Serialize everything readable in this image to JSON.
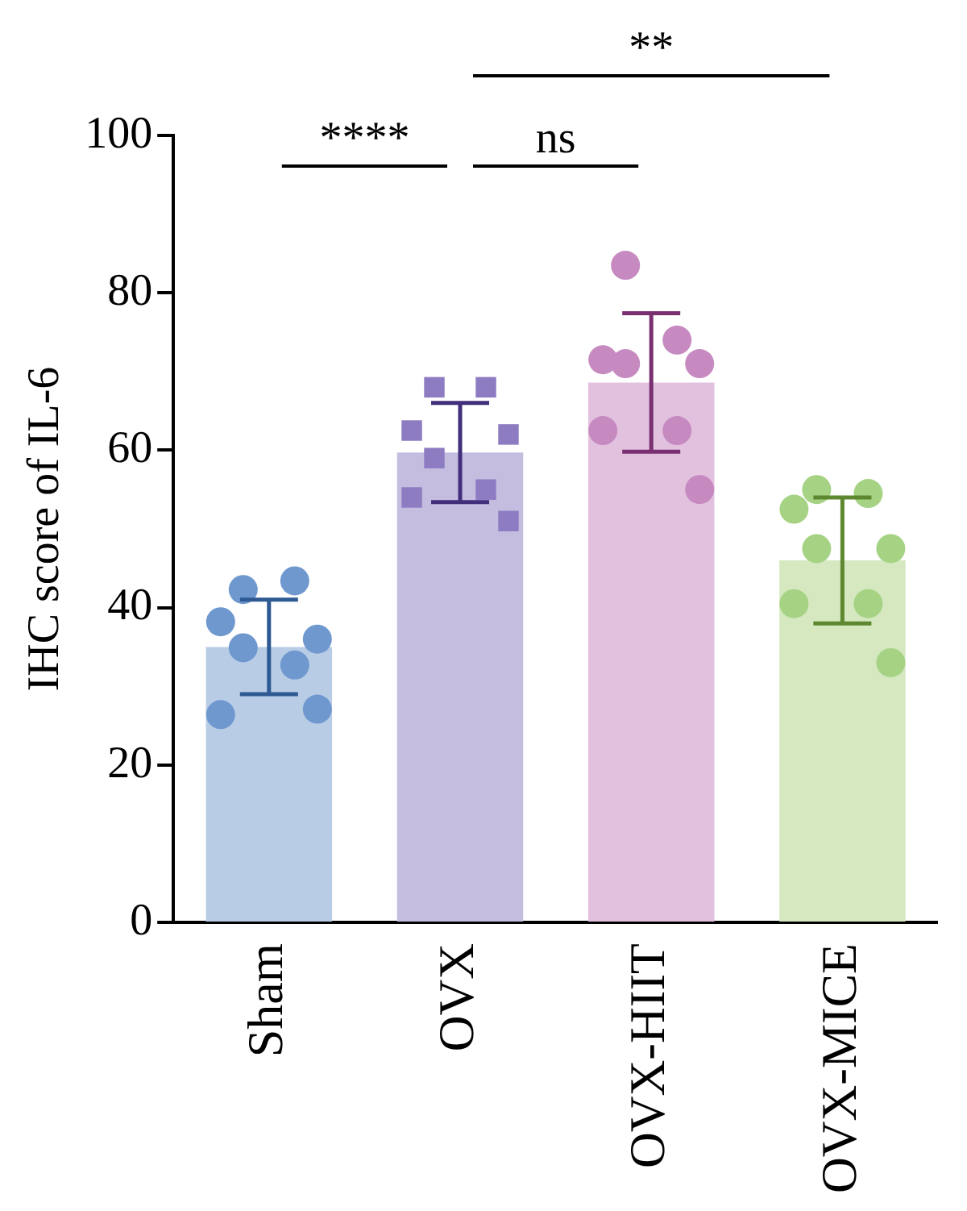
{
  "chart_data": {
    "type": "bar",
    "ylabel": "IHC score of IL-6",
    "categories": [
      "Sham",
      "OVX",
      "OVX-HIIT",
      "OVX-MICE"
    ],
    "ylim": [
      0,
      100
    ],
    "yticks": [
      0,
      20,
      40,
      60,
      80,
      100
    ],
    "grid": false,
    "legend": false,
    "annotations": [
      "****",
      "ns",
      "**"
    ],
    "series": [
      {
        "values": [
          35,
          59.7,
          68.6,
          46
        ],
        "errors": [
          6,
          6.3,
          8.8,
          8
        ],
        "colors": [
          "#b8cce6",
          "#c5bde0",
          "#e2c1de",
          "#d5e8c0"
        ]
      },
      {
        "type": "scatter",
        "marker": "circle",
        "color": "#6f98cf",
        "x": [
          "Sham",
          "Sham",
          "Sham",
          "Sham",
          "Sham",
          "Sham",
          "Sham",
          "Sham"
        ],
        "values": [
          42.3,
          43.4,
          38.2,
          36,
          34.9,
          32.7,
          26.4,
          27.1
        ]
      },
      {
        "type": "scatter",
        "marker": "square",
        "color": "#8e7cc3",
        "x": [
          "OVX",
          "OVX",
          "OVX",
          "OVX",
          "OVX",
          "OVX",
          "OVX",
          "OVX"
        ],
        "values": [
          68,
          68,
          62.5,
          62,
          59,
          55,
          54,
          51
        ]
      },
      {
        "type": "scatter",
        "marker": "circle",
        "color": "#c68ac1",
        "x": [
          "OVX-HIIT",
          "OVX-HIIT",
          "OVX-HIIT",
          "OVX-HIIT",
          "OVX-HIIT",
          "OVX-HIIT",
          "OVX-HIIT",
          "OVX-HIIT"
        ],
        "values": [
          83.5,
          74,
          71.5,
          71,
          71,
          62.5,
          62.5,
          55
        ]
      },
      {
        "type": "scatter",
        "marker": "circle",
        "color": "#a5d383",
        "x": [
          "OVX-MICE",
          "OVX-MICE",
          "OVX-MICE",
          "OVX-MICE",
          "OVX-MICE",
          "OVX-MICE",
          "OVX-MICE",
          "OVX-MICE"
        ],
        "values": [
          55,
          54.5,
          52.5,
          47.5,
          47.5,
          40.5,
          40.5,
          33
        ]
      }
    ]
  }
}
